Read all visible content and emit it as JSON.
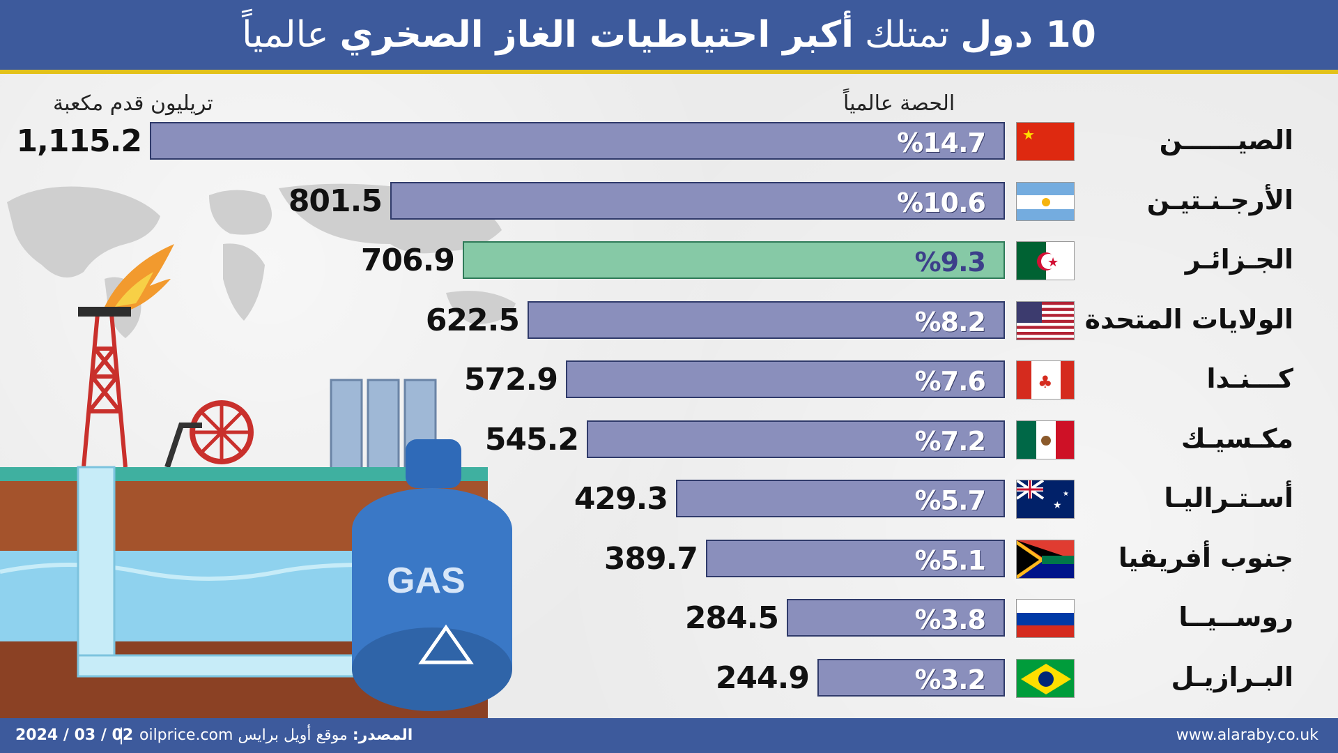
{
  "header": {
    "title_part1": "10 دول",
    "title_part2": "تمتلك",
    "title_part3": "أكبر احتياطيات الغاز الصخري",
    "title_part4": "عالمياً"
  },
  "columns": {
    "unit_label": "تريليون قدم مكعبة",
    "share_label": "الحصة عالمياً"
  },
  "colors": {
    "header_bg": "#3d5a9c",
    "accent_line": "#e3c21a",
    "bar": "#8a8fbc",
    "bar_highlight": "#86c9a6"
  },
  "chart_data": {
    "type": "bar",
    "orientation": "horizontal",
    "title": "10 دول تمتلك أكبر احتياطيات الغاز الصخري عالمياً",
    "xlabel": "تريليون قدم مكعبة",
    "categories": [
      "الصيــــــن",
      "الأرجـنـتيـن",
      "الجـزائـر",
      "الولايات المتحدة",
      "كـــنـدا",
      "مكـسيـك",
      "أسـتـراليـا",
      "جنوب أفريقيا",
      "روســيــا",
      "البـرازيـل"
    ],
    "values": [
      1115.2,
      801.5,
      706.9,
      622.5,
      572.9,
      545.2,
      429.3,
      389.7,
      284.5,
      244.9
    ],
    "value_labels": [
      "1,115.2",
      "801.5",
      "706.9",
      "622.5",
      "572.9",
      "545.2",
      "429.3",
      "389.7",
      "284.5",
      "244.9"
    ],
    "share_labels": [
      "%14.7",
      "%10.6",
      "%9.3",
      "%8.2",
      "%7.6",
      "%7.2",
      "%5.7",
      "%5.1",
      "%3.8",
      "%3.2"
    ],
    "highlight_index": 2,
    "flag_icons": [
      "flag-china-icon",
      "flag-argentina-icon",
      "flag-algeria-icon",
      "flag-usa-icon",
      "flag-canada-icon",
      "flag-mexico-icon",
      "flag-australia-icon",
      "flag-south-africa-icon",
      "flag-russia-icon",
      "flag-brazil-icon"
    ],
    "grid": false,
    "legend": "none"
  },
  "illustration": {
    "tank_label": "GAS"
  },
  "footer": {
    "date": "2024 / 03 / 02",
    "source_label": "المصدر:",
    "source_text": "موقع أويل برايس oilprice.com",
    "url": "www.alaraby.co.uk"
  }
}
